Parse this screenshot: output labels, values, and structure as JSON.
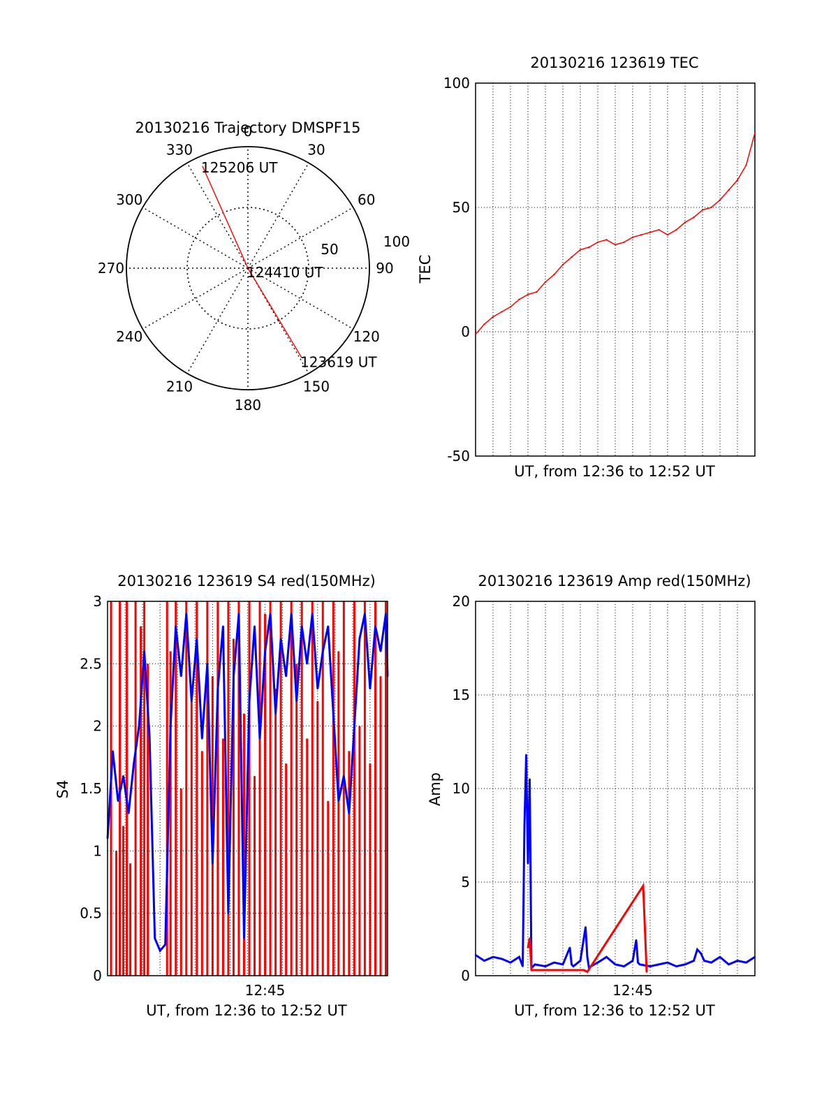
{
  "colors": {
    "red": "#ff0000",
    "blue": "#0000ff",
    "axis": "#000000",
    "grid": "#000000"
  },
  "chart_data": [
    {
      "type": "scatter",
      "subtype": "polar-trajectory",
      "title": "20130216 Trajectory DMSPF15",
      "azimuth_ticks": [
        "0",
        "30",
        "60",
        "90",
        "120",
        "150",
        "180",
        "210",
        "240",
        "270",
        "300",
        "330"
      ],
      "radius_ticks": [
        "50",
        "100"
      ],
      "rlim": [
        0,
        100
      ],
      "grid": true,
      "series": [
        {
          "color": "red",
          "points": [
            {
              "azimuth": 336,
              "radius": 92
            },
            {
              "azimuth": 0,
              "radius": 0
            },
            {
              "azimuth": 149,
              "radius": 86
            }
          ]
        }
      ],
      "annotations": [
        {
          "text": "125206 UT",
          "azimuth": 336,
          "radius": 92
        },
        {
          "text": "124410 UT",
          "azimuth": 0,
          "radius": 0
        },
        {
          "text": "123619 UT",
          "azimuth": 149,
          "radius": 86
        }
      ]
    },
    {
      "type": "line",
      "title": "20130216 123619 TEC",
      "xlabel": "UT, from 12:36 to 12:52 UT",
      "ylabel": "TEC",
      "xlim": [
        0,
        16
      ],
      "ylim": [
        -50,
        100
      ],
      "yticks": [
        "-50",
        "0",
        "50",
        "100"
      ],
      "xticks": [],
      "grid": true,
      "series": [
        {
          "color": "red",
          "x": [
            0,
            0.5,
            1,
            1.5,
            2,
            2.5,
            3,
            3.5,
            4,
            4.5,
            5,
            5.5,
            6,
            6.5,
            7,
            7.5,
            8,
            8.5,
            9,
            9.5,
            10,
            10.5,
            11,
            11.5,
            12,
            12.5,
            13,
            13.5,
            14,
            14.5,
            15,
            15.5,
            16
          ],
          "y": [
            -1,
            3,
            6,
            8,
            10,
            13,
            15,
            16,
            20,
            23,
            27,
            30,
            33,
            34,
            36,
            37,
            35,
            36,
            38,
            39,
            40,
            41,
            39,
            41,
            44,
            46,
            49,
            50,
            53,
            57,
            61,
            67,
            80
          ]
        }
      ]
    },
    {
      "type": "line",
      "title": "20130216 123619 S4 red(150MHz)",
      "xlabel": "UT, from 12:36 to 12:52 UT",
      "ylabel": "S4",
      "xlim": [
        0,
        16
      ],
      "ylim": [
        0,
        3
      ],
      "yticks": [
        "0",
        "0.5",
        "1",
        "1.5",
        "2",
        "2.5",
        "3"
      ],
      "xticks": [
        {
          "label": "12:45",
          "x": 9
        }
      ],
      "grid": true,
      "series": [
        {
          "color": "red",
          "x": [
            0.2,
            0.5,
            0.7,
            0.9,
            1.1,
            1.3,
            1.6,
            1.9,
            2.1,
            2.3,
            3.4,
            3.6,
            3.9,
            4.2,
            4.5,
            4.8,
            5.1,
            5.4,
            5.7,
            6.0,
            6.3,
            6.6,
            6.9,
            7.2,
            7.5,
            7.8,
            8.1,
            8.4,
            8.7,
            9.0,
            9.3,
            9.6,
            9.9,
            10.2,
            10.5,
            10.8,
            11.1,
            11.4,
            11.7,
            12.0,
            12.3,
            12.6,
            12.9,
            13.2,
            13.5,
            13.8,
            14.1,
            14.4,
            14.7,
            15.0,
            15.3,
            15.6,
            15.9
          ],
          "y": [
            3.0,
            1.0,
            3.0,
            1.2,
            3.0,
            0.9,
            3.0,
            2.8,
            3.0,
            2.5,
            3.0,
            2.6,
            3.0,
            1.5,
            3.0,
            2.2,
            3.0,
            1.8,
            3.0,
            2.4,
            3.0,
            1.9,
            3.0,
            2.7,
            3.0,
            2.1,
            3.0,
            1.6,
            3.0,
            2.9,
            3.0,
            2.3,
            3.0,
            1.7,
            3.0,
            2.5,
            3.0,
            1.9,
            3.0,
            2.2,
            3.0,
            1.4,
            3.0,
            2.6,
            3.0,
            1.8,
            3.0,
            2.0,
            3.0,
            1.7,
            3.0,
            2.4,
            3.0
          ]
        },
        {
          "color": "blue",
          "x": [
            0,
            0.3,
            0.6,
            0.9,
            1.2,
            1.5,
            1.8,
            2.1,
            2.4,
            2.7,
            3.0,
            3.3,
            3.6,
            3.9,
            4.2,
            4.5,
            4.8,
            5.1,
            5.4,
            5.7,
            6.0,
            6.3,
            6.6,
            6.9,
            7.2,
            7.5,
            7.8,
            8.1,
            8.4,
            8.7,
            9.0,
            9.3,
            9.6,
            9.9,
            10.2,
            10.5,
            10.8,
            11.1,
            11.4,
            11.7,
            12.0,
            12.3,
            12.6,
            12.9,
            13.2,
            13.5,
            13.8,
            14.1,
            14.4,
            14.7,
            15.0,
            15.3,
            15.6,
            15.9,
            16
          ],
          "y": [
            1.1,
            1.8,
            1.4,
            1.6,
            1.3,
            1.7,
            2.0,
            2.6,
            1.9,
            0.3,
            0.2,
            0.25,
            2.0,
            2.8,
            2.4,
            2.9,
            2.2,
            2.7,
            1.9,
            2.5,
            0.9,
            2.3,
            2.8,
            0.5,
            2.4,
            2.9,
            0.3,
            2.2,
            2.8,
            1.9,
            2.6,
            2.9,
            2.1,
            2.7,
            2.4,
            2.9,
            2.2,
            2.8,
            2.5,
            2.9,
            2.3,
            2.6,
            2.8,
            2.1,
            1.4,
            1.6,
            1.3,
            2.0,
            2.7,
            2.9,
            2.3,
            2.8,
            2.6,
            2.9,
            2.4
          ]
        }
      ]
    },
    {
      "type": "line",
      "title": "20130216 123619 Amp red(150MHz)",
      "xlabel": "UT, from 12:36 to 12:52 UT",
      "ylabel": "Amp",
      "xlim": [
        0,
        16
      ],
      "ylim": [
        0,
        20
      ],
      "yticks": [
        "0",
        "5",
        "10",
        "15",
        "20"
      ],
      "xticks": [
        {
          "label": "12:45",
          "x": 9
        }
      ],
      "grid": true,
      "series": [
        {
          "color": "blue",
          "x": [
            0,
            0.5,
            1,
            1.5,
            2,
            2.5,
            2.7,
            2.8,
            2.9,
            3.0,
            3.1,
            3.2,
            3.4,
            4,
            4.5,
            5,
            5.4,
            5.5,
            5.6,
            6.0,
            6.3,
            6.4,
            6.5,
            6.6,
            7,
            7.5,
            8,
            8.5,
            9,
            9.2,
            9.3,
            9.4,
            10,
            10.5,
            11,
            11.5,
            12,
            12.5,
            12.7,
            12.9,
            13.1,
            13.5,
            14,
            14.5,
            15,
            15.5,
            16
          ],
          "y": [
            1.1,
            0.8,
            1.0,
            0.9,
            0.7,
            1.0,
            0.5,
            8.0,
            11.8,
            6.0,
            10.5,
            0.4,
            0.6,
            0.5,
            0.7,
            0.6,
            1.5,
            0.6,
            0.5,
            0.8,
            2.6,
            1.0,
            0.4,
            0.5,
            0.7,
            1.0,
            0.6,
            0.5,
            0.8,
            1.9,
            0.7,
            0.6,
            0.5,
            0.6,
            0.7,
            0.5,
            0.6,
            0.8,
            1.4,
            1.2,
            0.8,
            0.7,
            1.0,
            0.6,
            0.8,
            0.7,
            1.0
          ]
        },
        {
          "color": "red",
          "x": [
            3.0,
            3.1,
            3.2,
            6.2,
            6.4,
            9.6,
            9.8
          ],
          "y": [
            1.5,
            2.0,
            0.3,
            0.3,
            0.2,
            4.8,
            0.2
          ]
        }
      ]
    }
  ]
}
